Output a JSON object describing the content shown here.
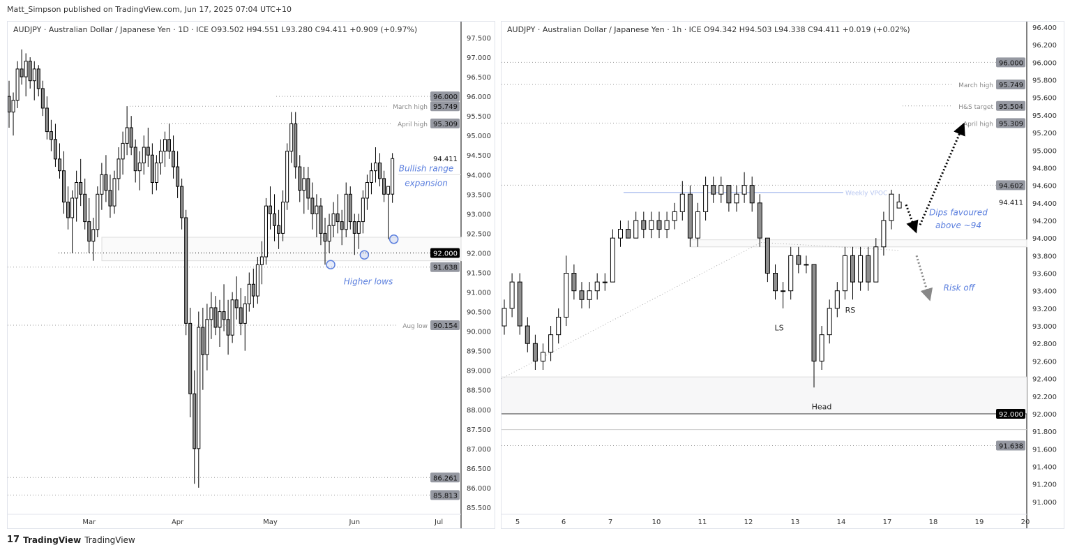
{
  "publisher": "Matt_Simpson published on TradingView.com, Jun 17, 2025 07:04 UTC+10",
  "footer": {
    "logo_text": "TradingView",
    "brand": "TradingView"
  },
  "colors": {
    "up_body": "#ffffff",
    "down_body": "#8f8f8f",
    "wick": "#000000",
    "annotation": "#5b7fde",
    "price_tag": "#9598a1",
    "last_tag": "#000000"
  },
  "chart_data": [
    {
      "type": "candlestick",
      "legend": "AUDJPY · Australian Dollar / Japanese Yen · 1D · ICE  O93.502  H94.551  L93.280  C94.411  +0.909 (+0.97%)",
      "timeframe": "1D",
      "ylim": [
        85.5,
        97.7
      ],
      "y_ticks": [
        "97.500",
        "97.000",
        "96.500",
        "96.000",
        "95.500",
        "95.000",
        "94.500",
        "94.000",
        "93.500",
        "93.000",
        "92.500",
        "92.000",
        "91.500",
        "91.000",
        "90.500",
        "90.000",
        "89.500",
        "89.000",
        "88.500",
        "88.000",
        "87.500",
        "87.000",
        "86.500",
        "86.000",
        "85.500"
      ],
      "x_ticks": [
        {
          "label": "Mar",
          "index": 19
        },
        {
          "label": "Apr",
          "index": 40
        },
        {
          "label": "May",
          "index": 62
        },
        {
          "label": "Jun",
          "index": 82
        },
        {
          "label": "Jul",
          "index": 102
        }
      ],
      "price_tags": [
        {
          "value": 96.0,
          "text": "96.000",
          "label": ""
        },
        {
          "value": 95.749,
          "text": "95.749",
          "label": "March high"
        },
        {
          "value": 95.309,
          "text": "95.309",
          "label": "April high"
        },
        {
          "value": 94.411,
          "text": "94.411",
          "label": "",
          "plain": true
        },
        {
          "value": 92.0,
          "text": "92.000",
          "label": "",
          "last": true
        },
        {
          "value": 91.638,
          "text": "91.638",
          "label": ""
        },
        {
          "value": 90.154,
          "text": "90.154",
          "label": "Aug low"
        },
        {
          "value": 86.261,
          "text": "86.261",
          "label": ""
        },
        {
          "value": 85.813,
          "text": "85.813",
          "label": ""
        }
      ],
      "annotations": [
        "Bullish range",
        "expansion",
        "Higher lows"
      ],
      "ohlc": [
        [
          96.0,
          96.4,
          95.2,
          95.6
        ],
        [
          95.6,
          96.1,
          95.0,
          95.9
        ],
        [
          95.9,
          96.9,
          95.7,
          96.7
        ],
        [
          96.7,
          97.2,
          96.3,
          96.5
        ],
        [
          96.5,
          97.1,
          96.0,
          96.9
        ],
        [
          96.9,
          97.0,
          96.2,
          96.4
        ],
        [
          96.4,
          96.9,
          95.9,
          96.7
        ],
        [
          96.7,
          96.8,
          96.0,
          96.2
        ],
        [
          96.2,
          96.4,
          95.5,
          95.7
        ],
        [
          95.7,
          96.0,
          94.9,
          95.1
        ],
        [
          95.1,
          95.4,
          94.6,
          94.9
        ],
        [
          94.9,
          95.3,
          94.2,
          94.4
        ],
        [
          94.4,
          94.8,
          93.9,
          94.1
        ],
        [
          94.1,
          94.6,
          93.0,
          93.3
        ],
        [
          93.3,
          93.7,
          92.6,
          92.9
        ],
        [
          92.9,
          93.6,
          92.0,
          93.4
        ],
        [
          93.4,
          94.1,
          92.8,
          93.8
        ],
        [
          93.8,
          94.4,
          93.2,
          93.5
        ],
        [
          93.5,
          93.9,
          92.6,
          92.8
        ],
        [
          92.8,
          93.4,
          92.0,
          92.3
        ],
        [
          92.3,
          92.9,
          91.8,
          92.6
        ],
        [
          92.6,
          93.7,
          92.4,
          93.5
        ],
        [
          93.5,
          94.3,
          93.1,
          94.0
        ],
        [
          94.0,
          94.5,
          93.3,
          93.6
        ],
        [
          93.6,
          94.0,
          92.9,
          93.2
        ],
        [
          93.2,
          94.1,
          93.0,
          93.9
        ],
        [
          93.9,
          94.7,
          93.6,
          94.4
        ],
        [
          94.4,
          95.1,
          94.0,
          94.8
        ],
        [
          94.8,
          95.75,
          94.5,
          95.2
        ],
        [
          95.2,
          95.5,
          94.5,
          94.7
        ],
        [
          94.7,
          94.9,
          93.8,
          94.1
        ],
        [
          94.1,
          94.6,
          93.6,
          94.3
        ],
        [
          94.3,
          95.0,
          94.0,
          94.7
        ],
        [
          94.7,
          95.2,
          94.2,
          94.5
        ],
        [
          94.5,
          94.8,
          93.5,
          93.8
        ],
        [
          93.8,
          94.5,
          93.6,
          94.3
        ],
        [
          94.3,
          94.9,
          94.0,
          94.6
        ],
        [
          94.6,
          95.1,
          94.2,
          94.9
        ],
        [
          94.9,
          95.3,
          94.4,
          94.6
        ],
        [
          94.6,
          95.0,
          93.9,
          94.2
        ],
        [
          94.2,
          94.6,
          93.4,
          93.7
        ],
        [
          93.7,
          93.9,
          92.6,
          92.9
        ],
        [
          92.9,
          93.1,
          89.9,
          90.2
        ],
        [
          90.2,
          90.6,
          87.8,
          88.4
        ],
        [
          88.4,
          89.0,
          86.1,
          87.0
        ],
        [
          87.0,
          90.5,
          86.0,
          90.1
        ],
        [
          90.1,
          90.6,
          88.5,
          89.4
        ],
        [
          89.4,
          90.7,
          89.0,
          90.3
        ],
        [
          90.3,
          91.0,
          89.8,
          90.6
        ],
        [
          90.6,
          90.9,
          89.9,
          90.1
        ],
        [
          90.1,
          90.8,
          89.6,
          90.5
        ],
        [
          90.5,
          91.2,
          90.0,
          90.3
        ],
        [
          90.3,
          90.8,
          89.4,
          89.9
        ],
        [
          89.9,
          91.0,
          89.7,
          90.8
        ],
        [
          90.8,
          91.4,
          90.3,
          90.6
        ],
        [
          90.6,
          91.1,
          89.9,
          90.2
        ],
        [
          90.2,
          90.9,
          89.5,
          90.7
        ],
        [
          90.7,
          91.5,
          90.5,
          91.2
        ],
        [
          91.2,
          91.6,
          90.6,
          90.9
        ],
        [
          90.9,
          91.9,
          90.7,
          91.7
        ],
        [
          91.7,
          92.3,
          91.2,
          91.9
        ],
        [
          91.9,
          93.4,
          91.7,
          93.2
        ],
        [
          93.2,
          93.7,
          92.6,
          93.0
        ],
        [
          93.0,
          93.5,
          92.3,
          92.7
        ],
        [
          92.7,
          93.1,
          92.1,
          92.5
        ],
        [
          92.5,
          93.6,
          92.3,
          93.3
        ],
        [
          93.3,
          94.8,
          93.1,
          94.6
        ],
        [
          94.6,
          95.6,
          94.3,
          95.3
        ],
        [
          95.3,
          95.6,
          93.9,
          94.2
        ],
        [
          94.2,
          94.5,
          93.3,
          93.6
        ],
        [
          93.6,
          94.2,
          93.0,
          93.9
        ],
        [
          93.9,
          94.2,
          93.1,
          93.4
        ],
        [
          93.4,
          93.8,
          92.6,
          93.0
        ],
        [
          93.0,
          93.5,
          92.4,
          93.2
        ],
        [
          93.2,
          93.4,
          92.2,
          92.5
        ],
        [
          92.5,
          92.9,
          91.7,
          92.3
        ],
        [
          92.3,
          93.0,
          92.0,
          92.7
        ],
        [
          92.7,
          93.3,
          92.4,
          93.0
        ],
        [
          93.0,
          93.5,
          92.5,
          92.8
        ],
        [
          92.8,
          93.1,
          92.2,
          92.6
        ],
        [
          92.6,
          93.8,
          92.4,
          93.5
        ],
        [
          93.5,
          93.7,
          92.6,
          92.8
        ],
        [
          92.8,
          93.0,
          91.95,
          92.5
        ],
        [
          92.5,
          93.0,
          92.1,
          92.8
        ],
        [
          92.8,
          93.6,
          92.5,
          93.4
        ],
        [
          93.4,
          94.0,
          93.1,
          93.8
        ],
        [
          93.8,
          94.3,
          93.5,
          94.1
        ],
        [
          94.1,
          94.7,
          93.8,
          94.3
        ],
        [
          94.3,
          94.55,
          93.7,
          93.9
        ],
        [
          93.9,
          94.1,
          93.3,
          93.5
        ],
        [
          93.5,
          93.7,
          92.35,
          93.7
        ],
        [
          93.502,
          94.551,
          93.28,
          94.411
        ]
      ]
    },
    {
      "type": "candlestick",
      "legend": "AUDJPY · Australian Dollar / Japanese Yen · 1h · ICE  O94.342  H94.503  L94.338  C94.411  +0.019 (+0.02%)",
      "timeframe": "1h",
      "ylim": [
        90.85,
        96.55
      ],
      "y_ticks": [
        "96.400",
        "96.200",
        "96.000",
        "95.800",
        "95.600",
        "95.400",
        "95.200",
        "95.000",
        "94.800",
        "94.600",
        "94.400",
        "94.200",
        "94.000",
        "93.800",
        "93.600",
        "93.400",
        "93.200",
        "93.000",
        "92.800",
        "92.600",
        "92.400",
        "92.200",
        "92.000",
        "91.800",
        "91.600",
        "91.400",
        "91.200",
        "91.000"
      ],
      "x_ticks": [
        "5",
        "6",
        "7",
        "10",
        "11",
        "12",
        "13",
        "14",
        "17",
        "18",
        "19",
        "20"
      ],
      "price_tags": [
        {
          "value": 96.0,
          "text": "96.000",
          "label": ""
        },
        {
          "value": 95.749,
          "text": "95.749",
          "label": "March high"
        },
        {
          "value": 95.504,
          "text": "95.504",
          "label": "H&S target"
        },
        {
          "value": 95.309,
          "text": "95.309",
          "label": "April high"
        },
        {
          "value": 94.602,
          "text": "94.602",
          "label": ""
        },
        {
          "value": 94.411,
          "text": "94.411",
          "label": "",
          "plain": true
        },
        {
          "value": 92.0,
          "text": "92.000",
          "label": "",
          "last": true
        },
        {
          "value": 91.638,
          "text": "91.638",
          "label": ""
        }
      ],
      "annotations": {
        "vpoc": "Weekly VPOC",
        "ls": "LS",
        "head": "Head",
        "rs": "RS",
        "dips1": "Dips favoured",
        "dips2": "above ~94",
        "risk": "Risk off"
      },
      "ohlc": [
        [
          93.0,
          93.3,
          92.9,
          93.2
        ],
        [
          93.2,
          93.6,
          93.1,
          93.5
        ],
        [
          93.5,
          93.6,
          92.9,
          93.0
        ],
        [
          93.0,
          93.1,
          92.7,
          92.8
        ],
        [
          92.8,
          92.9,
          92.5,
          92.6
        ],
        [
          92.6,
          92.8,
          92.5,
          92.7
        ],
        [
          92.7,
          93.0,
          92.6,
          92.9
        ],
        [
          92.9,
          93.2,
          92.8,
          93.1
        ],
        [
          93.1,
          93.8,
          93.0,
          93.6
        ],
        [
          93.6,
          93.7,
          93.3,
          93.4
        ],
        [
          93.4,
          93.5,
          93.2,
          93.3
        ],
        [
          93.3,
          93.5,
          93.2,
          93.4
        ],
        [
          93.4,
          93.6,
          93.3,
          93.5
        ],
        [
          93.5,
          93.6,
          93.4,
          93.5
        ],
        [
          93.5,
          94.1,
          93.5,
          94.0
        ],
        [
          94.0,
          94.2,
          93.9,
          94.1
        ],
        [
          94.1,
          94.2,
          94.0,
          94.0
        ],
        [
          94.0,
          94.3,
          94.0,
          94.2
        ],
        [
          94.2,
          94.3,
          94.0,
          94.1
        ],
        [
          94.1,
          94.3,
          94.0,
          94.2
        ],
        [
          94.2,
          94.3,
          94.0,
          94.1
        ],
        [
          94.1,
          94.3,
          94.0,
          94.2
        ],
        [
          94.2,
          94.4,
          94.1,
          94.3
        ],
        [
          94.3,
          94.65,
          94.2,
          94.5
        ],
        [
          94.5,
          94.6,
          93.9,
          94.0
        ],
        [
          94.0,
          94.4,
          93.9,
          94.3
        ],
        [
          94.3,
          94.7,
          94.2,
          94.6
        ],
        [
          94.6,
          94.7,
          94.4,
          94.5
        ],
        [
          94.5,
          94.7,
          94.4,
          94.6
        ],
        [
          94.6,
          94.6,
          94.3,
          94.4
        ],
        [
          94.4,
          94.6,
          94.3,
          94.5
        ],
        [
          94.5,
          94.75,
          94.4,
          94.6
        ],
        [
          94.6,
          94.7,
          94.3,
          94.4
        ],
        [
          94.4,
          94.5,
          93.9,
          94.0
        ],
        [
          94.0,
          94.0,
          93.5,
          93.6
        ],
        [
          93.6,
          93.7,
          93.3,
          93.4
        ],
        [
          93.4,
          93.5,
          93.2,
          93.4
        ],
        [
          93.4,
          93.9,
          93.3,
          93.8
        ],
        [
          93.8,
          93.9,
          93.6,
          93.7
        ],
        [
          93.7,
          93.8,
          93.6,
          93.7
        ],
        [
          93.7,
          93.7,
          92.3,
          92.6
        ],
        [
          92.6,
          93.0,
          92.5,
          92.9
        ],
        [
          92.9,
          93.3,
          92.8,
          93.2
        ],
        [
          93.2,
          93.5,
          93.1,
          93.4
        ],
        [
          93.4,
          93.9,
          93.3,
          93.8
        ],
        [
          93.8,
          93.9,
          93.3,
          93.5
        ],
        [
          93.5,
          93.9,
          93.4,
          93.8
        ],
        [
          93.8,
          93.9,
          93.4,
          93.5
        ],
        [
          93.5,
          94.0,
          93.5,
          93.9
        ],
        [
          93.9,
          94.3,
          93.8,
          94.2
        ],
        [
          94.2,
          94.55,
          94.1,
          94.5
        ],
        [
          94.342,
          94.503,
          94.338,
          94.411
        ]
      ]
    }
  ]
}
